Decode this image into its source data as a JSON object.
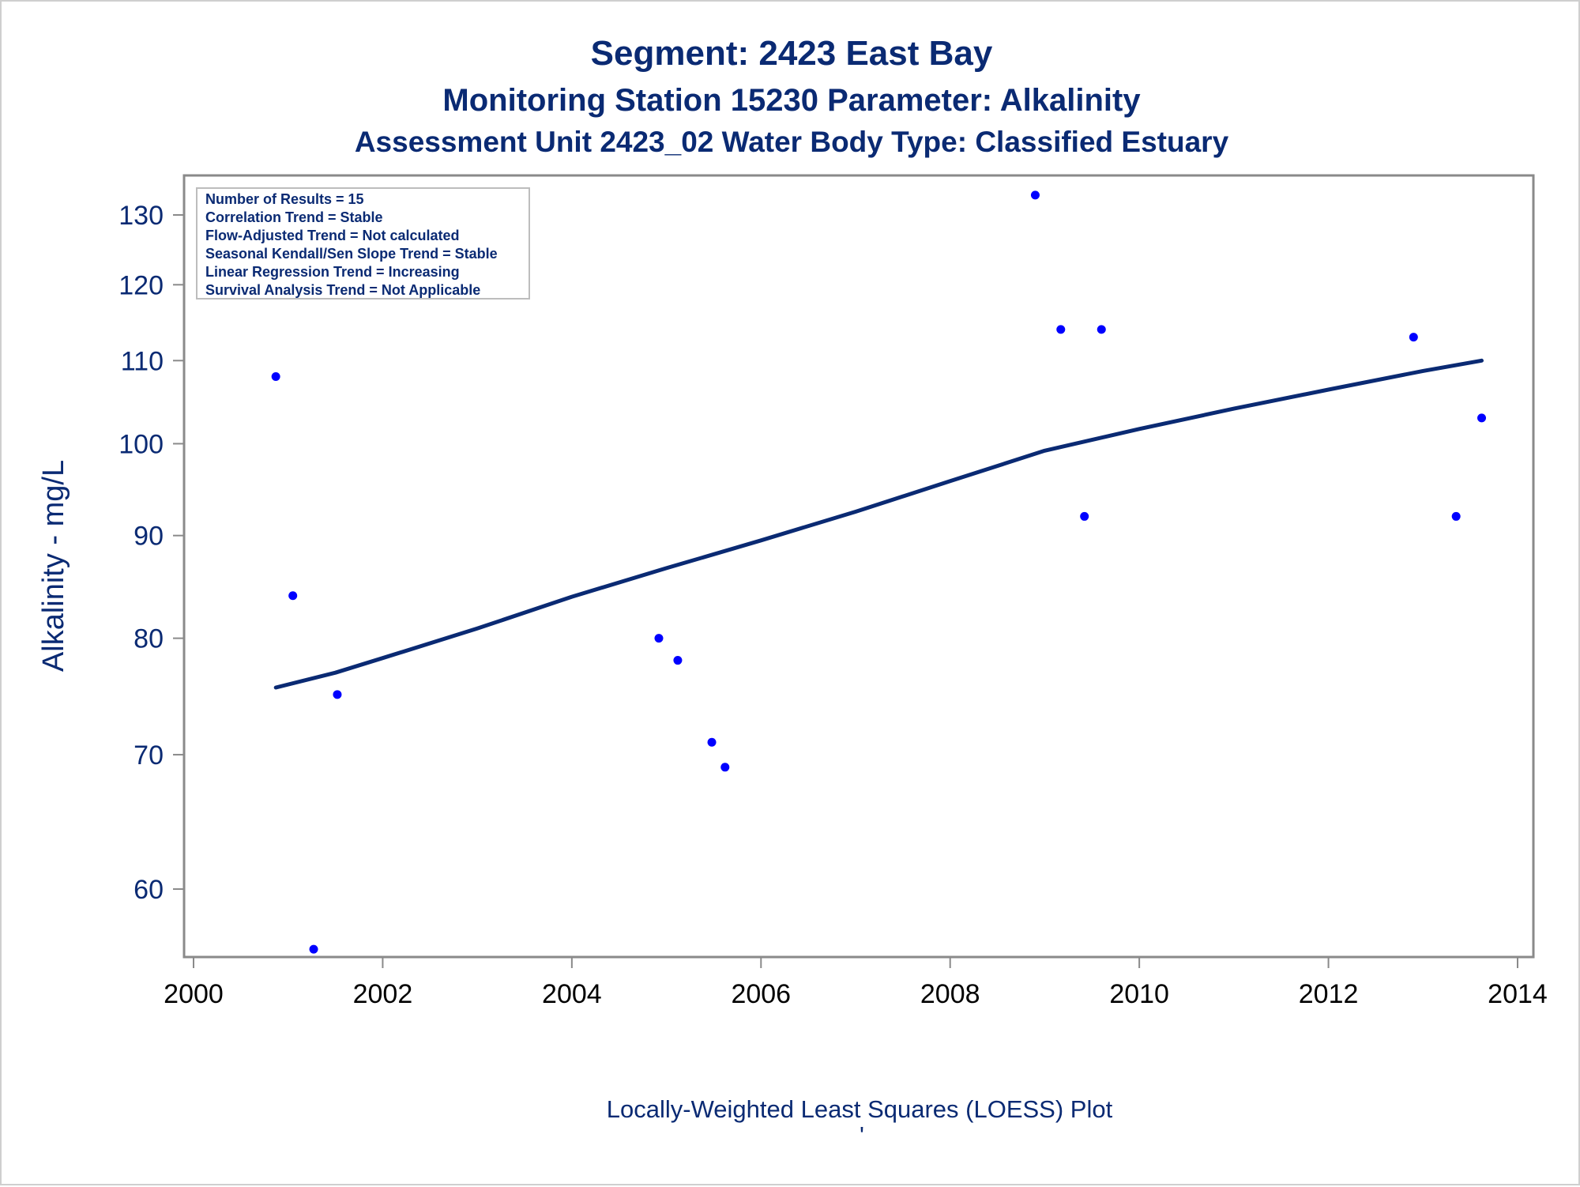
{
  "chart_data": {
    "type": "scatter",
    "title": "Segment: 2423  East Bay",
    "subtitle": "Monitoring Station 15230 Parameter: Alkalinity",
    "subtitle2": "Assessment Unit 2423_02   Water Body Type: Classified Estuary",
    "xlabel": "",
    "ylabel": "Alkalinity - mg/L",
    "y_scale": "log",
    "xlim": [
      2000,
      2014
    ],
    "ylim": [
      55,
      135
    ],
    "x_ticks": [
      "2000",
      "2002",
      "2004",
      "2006",
      "2008",
      "2010",
      "2012",
      "2014"
    ],
    "y_ticks": [
      "60",
      "70",
      "80",
      "90",
      "100",
      "110",
      "120",
      "130"
    ],
    "footnote": "Locally-Weighted Least Squares (LOESS) Plot",
    "footnote2": "'",
    "stats_box": {
      "location": "top-left",
      "lines": [
        "Number of Results = 15",
        "Correlation Trend = Stable",
        "Flow-Adjusted Trend = Not calculated",
        "Seasonal Kendall/Sen Slope Trend = Stable",
        "Linear Regression Trend = Increasing",
        "Survival Analysis Trend = Not Applicable"
      ]
    },
    "series": [
      {
        "type": "scatter",
        "color": "#0000ff",
        "points": [
          {
            "x": 2000.87,
            "y": 108
          },
          {
            "x": 2001.05,
            "y": 84
          },
          {
            "x": 2001.27,
            "y": 56
          },
          {
            "x": 2001.52,
            "y": 75
          },
          {
            "x": 2004.92,
            "y": 80
          },
          {
            "x": 2005.12,
            "y": 78
          },
          {
            "x": 2005.48,
            "y": 71
          },
          {
            "x": 2005.62,
            "y": 69
          },
          {
            "x": 2008.9,
            "y": 133
          },
          {
            "x": 2009.17,
            "y": 114
          },
          {
            "x": 2009.42,
            "y": 92
          },
          {
            "x": 2009.6,
            "y": 114
          },
          {
            "x": 2012.9,
            "y": 113
          },
          {
            "x": 2013.35,
            "y": 92
          },
          {
            "x": 2013.62,
            "y": 103
          }
        ]
      },
      {
        "type": "line",
        "color": "#0a2a73",
        "points": [
          {
            "x": 2000.87,
            "y": 75.6
          },
          {
            "x": 2001.5,
            "y": 76.9
          },
          {
            "x": 2002,
            "y": 78.2
          },
          {
            "x": 2003,
            "y": 80.9
          },
          {
            "x": 2004,
            "y": 83.9
          },
          {
            "x": 2005,
            "y": 86.7
          },
          {
            "x": 2006,
            "y": 89.5
          },
          {
            "x": 2007,
            "y": 92.5
          },
          {
            "x": 2008,
            "y": 95.8
          },
          {
            "x": 2009,
            "y": 99.2
          },
          {
            "x": 2010,
            "y": 101.7
          },
          {
            "x": 2011,
            "y": 104.1
          },
          {
            "x": 2012,
            "y": 106.4
          },
          {
            "x": 2013,
            "y": 108.7
          },
          {
            "x": 2013.62,
            "y": 110.0
          }
        ]
      }
    ]
  }
}
